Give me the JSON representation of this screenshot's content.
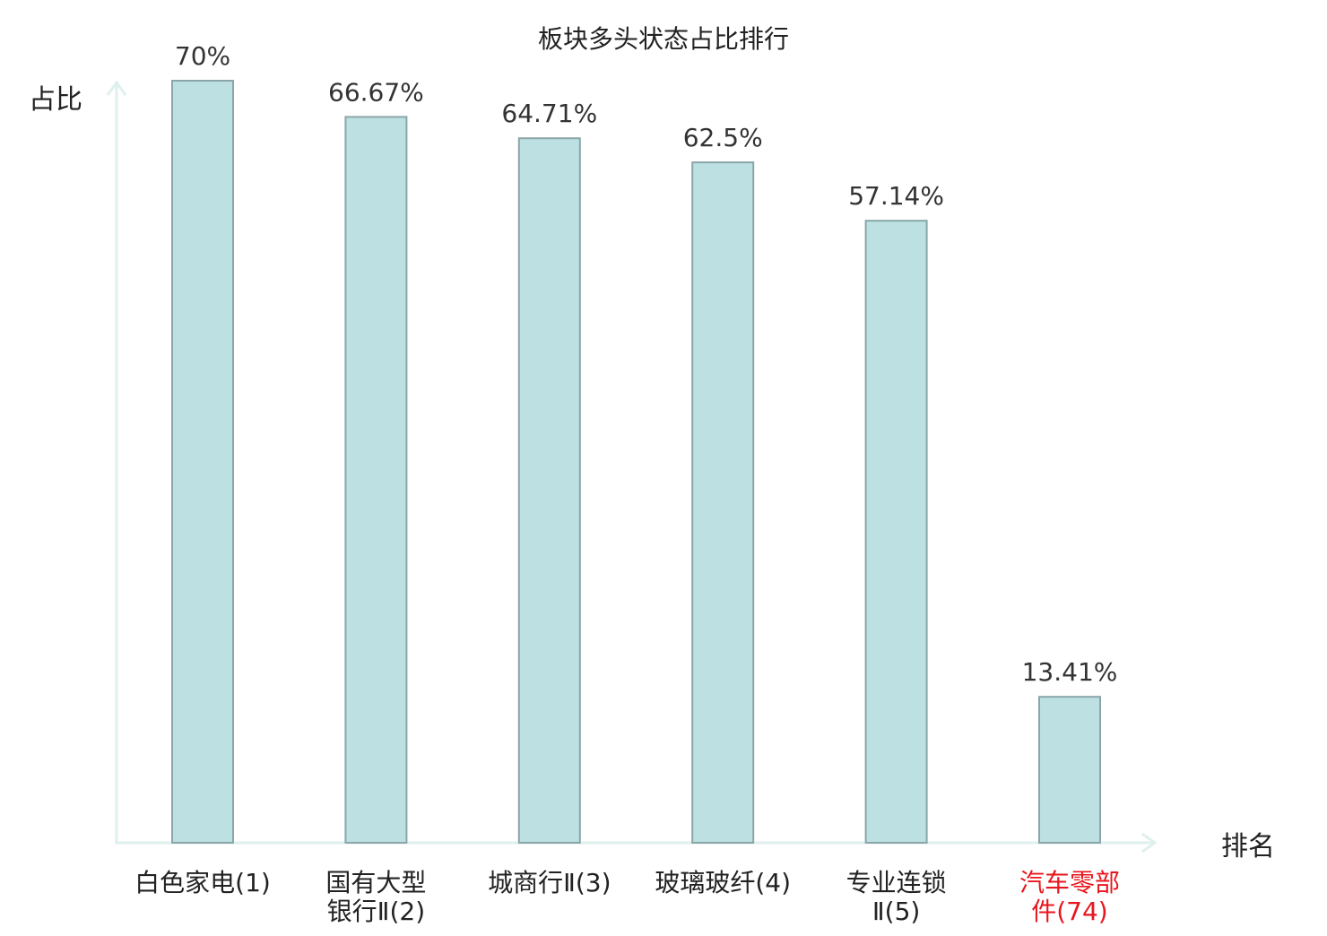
{
  "chart_data": {
    "type": "bar",
    "title": "板块多头状态占比排行",
    "xlabel": "排名",
    "ylabel": "占比",
    "ylim": [
      0,
      80
    ],
    "grid": false,
    "legend": "none",
    "categories": [
      [
        "白色家电(1)"
      ],
      [
        "国有大型",
        "银行Ⅱ(2)"
      ],
      [
        "城商行Ⅱ(3)"
      ],
      [
        "玻璃玻纤(4)"
      ],
      [
        "专业连锁",
        "Ⅱ(5)"
      ],
      [
        "汽车零部",
        "件(74)"
      ]
    ],
    "values": [
      70,
      66.67,
      64.71,
      62.5,
      57.14,
      13.41
    ],
    "value_labels": [
      "70%",
      "66.67%",
      "64.71%",
      "62.5%",
      "57.14%",
      "13.41%"
    ],
    "highlight_index": 5
  },
  "colors": {
    "bar_fill": "#bde0e3",
    "bar_stroke": "#8aa6a9",
    "axis": "#dff0ee",
    "text": "#222222",
    "value_label": "#333333",
    "highlight": "#e8161e"
  }
}
